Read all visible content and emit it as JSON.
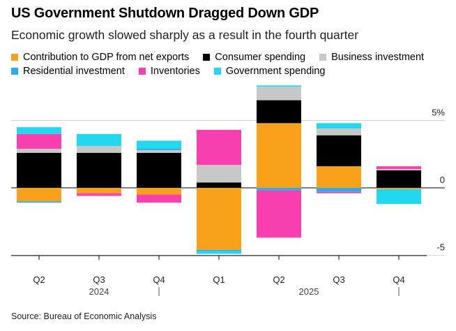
{
  "title": "US Government Shutdown Dragged Down GDP",
  "subtitle": "Economic growth slowed sharply as a result in the fourth quarter",
  "source": "Source: Bureau of Economic Analysis",
  "legend": [
    {
      "name": "Contribution to GDP from net exports",
      "color": "#f9a11b"
    },
    {
      "name": "Consumer spending",
      "color": "#000000"
    },
    {
      "name": "Business investment",
      "color": "#c8c8c8"
    },
    {
      "name": "Residential investment",
      "color": "#2eaaf0"
    },
    {
      "name": "Inventories",
      "color": "#f83fb0"
    },
    {
      "name": "Government spending",
      "color": "#23d8ee"
    }
  ],
  "chart_data": {
    "type": "bar",
    "stacked": true,
    "title": "US Government Shutdown Dragged Down GDP",
    "subtitle": "Economic growth slowed sharply as a result in the fourth quarter",
    "categories": [
      "Q2",
      "Q3",
      "Q4",
      "Q1",
      "Q2",
      "Q3",
      "Q4"
    ],
    "year_labels": [
      {
        "label": "2024",
        "span": [
          0,
          2
        ]
      },
      {
        "label": "2025",
        "span": [
          3,
          6
        ]
      }
    ],
    "year_separators_after": [
      2,
      6
    ],
    "yticks": [
      {
        "value": 5,
        "label": "5%"
      },
      {
        "value": 0,
        "label": "0"
      },
      {
        "value": -5,
        "label": "-5"
      }
    ],
    "ylim": [
      -5,
      7.6
    ],
    "series": [
      {
        "name": "Contribution to GDP from net exports",
        "color": "#f9a11b",
        "values": [
          -1.0,
          -0.4,
          -0.5,
          -4.6,
          4.8,
          1.6,
          -0.1
        ]
      },
      {
        "name": "Consumer spending",
        "color": "#000000",
        "values": [
          2.6,
          2.6,
          2.6,
          0.4,
          1.7,
          2.3,
          1.3
        ]
      },
      {
        "name": "Business investment",
        "color": "#c8c8c8",
        "values": [
          0.3,
          0.5,
          0.2,
          1.3,
          1.0,
          0.5,
          0.1
        ]
      },
      {
        "name": "Residential investment",
        "color": "#2eaaf0",
        "values": [
          -0.1,
          0.0,
          0.1,
          -0.1,
          -0.2,
          -0.3,
          0.0
        ]
      },
      {
        "name": "Inventories",
        "color": "#f83fb0",
        "values": [
          1.1,
          -0.2,
          -0.6,
          2.6,
          -3.5,
          -0.1,
          0.2
        ]
      },
      {
        "name": "Government spending",
        "color": "#23d8ee",
        "values": [
          0.5,
          0.9,
          0.6,
          -0.2,
          0.1,
          0.4,
          -1.1
        ]
      }
    ]
  }
}
